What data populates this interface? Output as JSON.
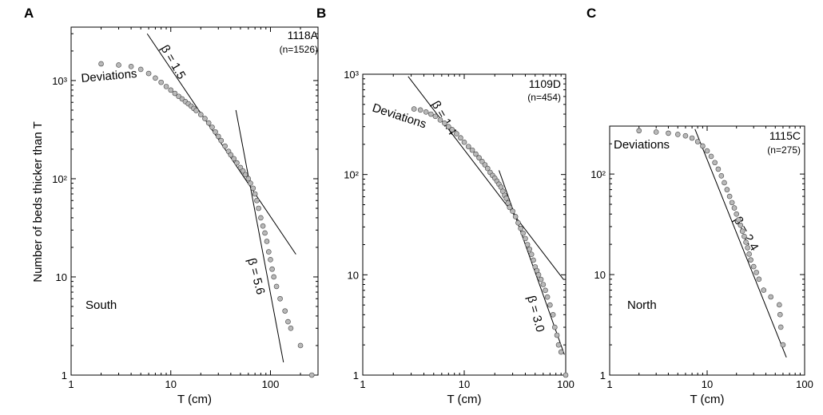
{
  "figure": {
    "ylabel": "Number of beds thicker than T"
  },
  "chart_data": [
    {
      "panel": "A",
      "type": "scatter",
      "xlabel": "T (cm)",
      "x_scale": "log",
      "y_scale": "log",
      "xlim": [
        1,
        300
      ],
      "ylim": [
        1,
        3500
      ],
      "x_ticks": [
        {
          "v": 1,
          "label": "1"
        },
        {
          "v": 10,
          "label": "10"
        },
        {
          "v": 100,
          "label": "100"
        }
      ],
      "y_ticks": [
        {
          "v": 1,
          "label": "1"
        },
        {
          "v": 10,
          "label": "10"
        },
        {
          "v": 100,
          "label": "10²"
        },
        {
          "v": 1000,
          "label": "10³"
        }
      ],
      "site": "1118A",
      "count": "(n=1526)",
      "region": "South",
      "deviations_label": "Deviations",
      "fits": [
        {
          "label": "β = 1.5",
          "slope": 1.5,
          "from": [
            5.8,
            3000
          ],
          "to": [
            180,
            17
          ]
        },
        {
          "label": "β = 5.6",
          "slope": 5.6,
          "from": [
            45,
            500
          ],
          "to": [
            135,
            1.35
          ]
        }
      ],
      "points": [
        [
          2,
          1480
        ],
        [
          3,
          1440
        ],
        [
          4,
          1390
        ],
        [
          5,
          1300
        ],
        [
          6,
          1180
        ],
        [
          7,
          1060
        ],
        [
          8,
          960
        ],
        [
          9,
          870
        ],
        [
          10,
          800
        ],
        [
          11,
          740
        ],
        [
          12,
          690
        ],
        [
          13,
          650
        ],
        [
          14,
          610
        ],
        [
          15,
          580
        ],
        [
          16,
          550
        ],
        [
          17,
          520
        ],
        [
          18,
          495
        ],
        [
          20,
          450
        ],
        [
          22,
          410
        ],
        [
          24,
          370
        ],
        [
          26,
          335
        ],
        [
          28,
          300
        ],
        [
          30,
          270
        ],
        [
          32,
          245
        ],
        [
          35,
          215
        ],
        [
          38,
          190
        ],
        [
          40,
          175
        ],
        [
          43,
          160
        ],
        [
          46,
          145
        ],
        [
          50,
          130
        ],
        [
          53,
          120
        ],
        [
          56,
          110
        ],
        [
          60,
          100
        ],
        [
          63,
          90
        ],
        [
          67,
          80
        ],
        [
          70,
          70
        ],
        [
          73,
          60
        ],
        [
          76,
          50
        ],
        [
          80,
          40
        ],
        [
          84,
          33
        ],
        [
          88,
          28
        ],
        [
          92,
          23
        ],
        [
          96,
          18
        ],
        [
          100,
          15
        ],
        [
          104,
          12
        ],
        [
          108,
          10
        ],
        [
          115,
          8
        ],
        [
          125,
          6
        ],
        [
          140,
          4.5
        ],
        [
          150,
          3.5
        ],
        [
          160,
          3
        ],
        [
          200,
          2
        ],
        [
          260,
          1
        ]
      ]
    },
    {
      "panel": "B",
      "type": "scatter",
      "xlabel": "T (cm)",
      "x_scale": "log",
      "y_scale": "log",
      "xlim": [
        1,
        100
      ],
      "ylim": [
        1,
        1000
      ],
      "x_ticks": [
        {
          "v": 1,
          "label": "1"
        },
        {
          "v": 10,
          "label": "10"
        },
        {
          "v": 100,
          "label": "100"
        }
      ],
      "y_ticks": [
        {
          "v": 1,
          "label": "1"
        },
        {
          "v": 10,
          "label": "10"
        },
        {
          "v": 100,
          "label": "10²"
        },
        {
          "v": 1000,
          "label": "10³"
        }
      ],
      "site": "1109D",
      "count": "(n=454)",
      "region": "",
      "deviations_label": "Deviations",
      "fits": [
        {
          "label": "β = 1.4",
          "slope": 1.4,
          "from": [
            2.8,
            950
          ],
          "to": [
            95,
            9
          ]
        },
        {
          "label": "β = 3.0",
          "slope": 3.0,
          "from": [
            22,
            110
          ],
          "to": [
            97,
            1.6
          ]
        }
      ],
      "points": [
        [
          3.2,
          450
        ],
        [
          3.7,
          440
        ],
        [
          4.2,
          420
        ],
        [
          4.7,
          400
        ],
        [
          5.2,
          380
        ],
        [
          5.8,
          350
        ],
        [
          6.4,
          325
        ],
        [
          7,
          300
        ],
        [
          7.6,
          280
        ],
        [
          8.4,
          255
        ],
        [
          9.2,
          232
        ],
        [
          10,
          210
        ],
        [
          11,
          190
        ],
        [
          12,
          175
        ],
        [
          13,
          160
        ],
        [
          14,
          147
        ],
        [
          15,
          135
        ],
        [
          16,
          125
        ],
        [
          17,
          115
        ],
        [
          18,
          105
        ],
        [
          19,
          98
        ],
        [
          20,
          92
        ],
        [
          21,
          86
        ],
        [
          22,
          80
        ],
        [
          23,
          75
        ],
        [
          24,
          68
        ],
        [
          25,
          62
        ],
        [
          26,
          58
        ],
        [
          27,
          52
        ],
        [
          28,
          47
        ],
        [
          30,
          43
        ],
        [
          32,
          38
        ],
        [
          34,
          33
        ],
        [
          36,
          29
        ],
        [
          38,
          26
        ],
        [
          40,
          23
        ],
        [
          42,
          20
        ],
        [
          44,
          18
        ],
        [
          46,
          16
        ],
        [
          48,
          14
        ],
        [
          50,
          12
        ],
        [
          52,
          11
        ],
        [
          54,
          10
        ],
        [
          57,
          9
        ],
        [
          60,
          8
        ],
        [
          63,
          7
        ],
        [
          66,
          6
        ],
        [
          70,
          5
        ],
        [
          75,
          4
        ],
        [
          78,
          3
        ],
        [
          82,
          2.5
        ],
        [
          85,
          2
        ],
        [
          90,
          1.7
        ],
        [
          100,
          1
        ]
      ]
    },
    {
      "panel": "C",
      "type": "scatter",
      "xlabel": "T (cm)",
      "x_scale": "log",
      "y_scale": "log",
      "xlim": [
        1,
        100
      ],
      "ylim": [
        1,
        300
      ],
      "x_ticks": [
        {
          "v": 1,
          "label": "1"
        },
        {
          "v": 10,
          "label": "10"
        },
        {
          "v": 100,
          "label": "100"
        }
      ],
      "y_ticks": [
        {
          "v": 1,
          "label": "1"
        },
        {
          "v": 10,
          "label": "10"
        },
        {
          "v": 100,
          "label": "10²"
        }
      ],
      "site": "1115C",
      "count": "(n=275)",
      "region": "North",
      "deviations_label": "Deviations",
      "fits": [
        {
          "label": "β = 2.4",
          "slope": 2.4,
          "from": [
            7.5,
            280
          ],
          "to": [
            65,
            1.5
          ]
        }
      ],
      "points": [
        [
          2,
          270
        ],
        [
          3,
          262
        ],
        [
          4,
          255
        ],
        [
          5,
          248
        ],
        [
          6,
          240
        ],
        [
          7,
          228
        ],
        [
          8,
          210
        ],
        [
          9,
          190
        ],
        [
          10,
          170
        ],
        [
          11,
          150
        ],
        [
          12,
          130
        ],
        [
          13,
          112
        ],
        [
          14,
          96
        ],
        [
          15,
          82
        ],
        [
          16,
          70
        ],
        [
          17,
          60
        ],
        [
          18,
          52
        ],
        [
          19,
          46
        ],
        [
          20,
          40
        ],
        [
          21,
          35
        ],
        [
          22,
          31
        ],
        [
          23,
          27
        ],
        [
          24,
          24
        ],
        [
          25,
          21
        ],
        [
          26,
          18.5
        ],
        [
          27,
          16
        ],
        [
          28,
          14
        ],
        [
          30,
          12
        ],
        [
          32,
          10.5
        ],
        [
          34,
          9
        ],
        [
          38,
          7
        ],
        [
          45,
          6
        ],
        [
          55,
          5
        ],
        [
          56,
          4
        ],
        [
          57,
          3
        ],
        [
          60,
          2
        ]
      ]
    }
  ]
}
